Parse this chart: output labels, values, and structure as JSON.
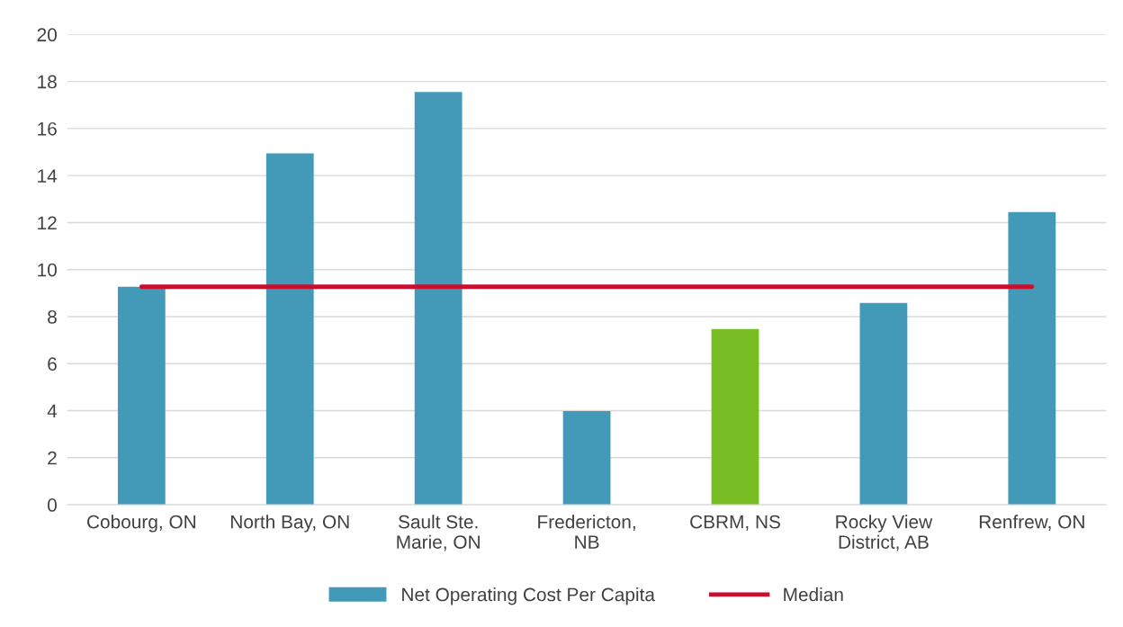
{
  "chart_data": {
    "type": "bar",
    "categories": [
      "Cobourg, ON",
      "North Bay, ON",
      "Sault Ste.\nMarie, ON",
      "Fredericton,\nNB",
      "CBRM, NS",
      "Rocky View\nDistrict, AB",
      "Renfrew, ON"
    ],
    "series": [
      {
        "name": "Net Operating Cost Per Capita",
        "color": "#4399b8",
        "colors": [
          "#4399b8",
          "#4399b8",
          "#4399b8",
          "#4399b8",
          "#78bd23",
          "#4399b8",
          "#4399b8"
        ],
        "values": [
          9.27,
          14.94,
          17.55,
          3.98,
          7.47,
          8.58,
          12.45
        ]
      },
      {
        "name": "Median",
        "type": "line",
        "color": "#c8102e",
        "values": [
          9.27,
          9.27,
          9.27,
          9.27,
          9.27,
          9.27,
          9.27
        ]
      }
    ],
    "ylim": [
      0,
      20
    ],
    "yticks": [
      0,
      2,
      4,
      6,
      8,
      10,
      12,
      14,
      16,
      18,
      20
    ],
    "grid": "y",
    "legend": "bottom"
  }
}
